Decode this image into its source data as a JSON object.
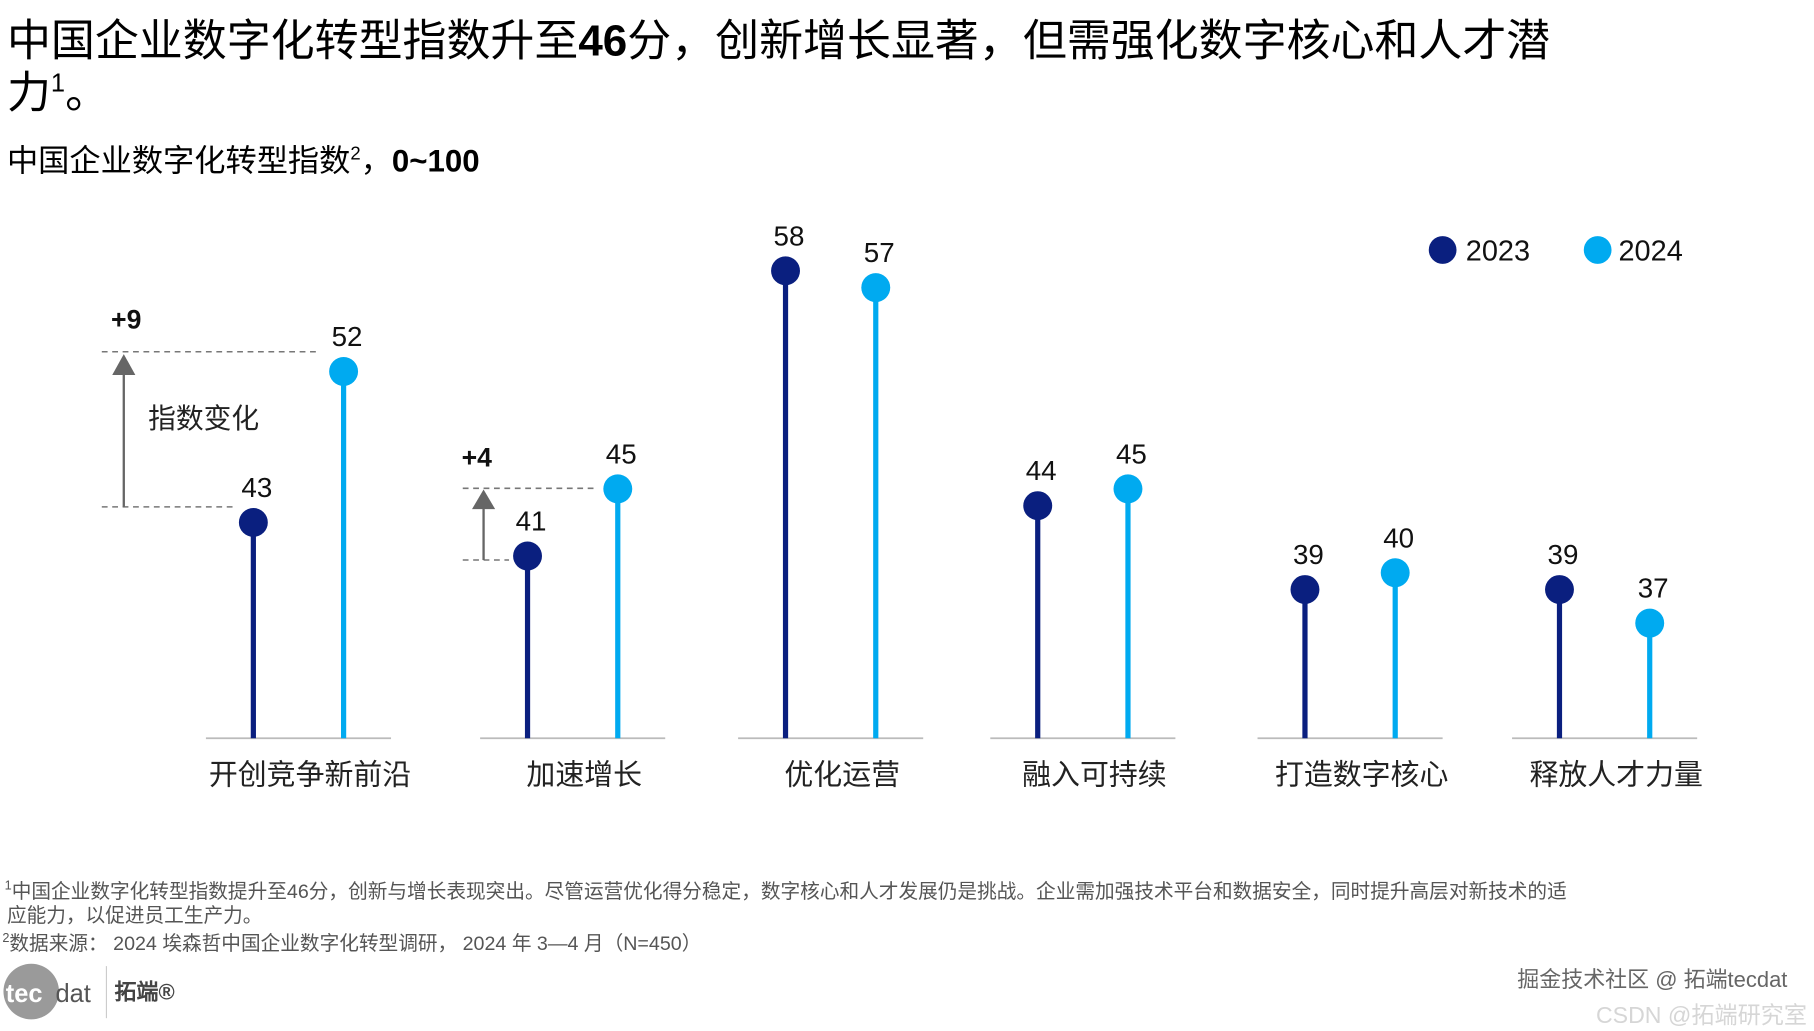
{
  "title": {
    "line1_a": "中国企业数字化转型指数升至",
    "line1_b": "46",
    "line1_c": "分，创新增长显著，但需强化数字核心和人才潜",
    "line2": "力",
    "line2_sup": "1",
    "line2_end": "。"
  },
  "subtitle": {
    "text": "中国企业数字化转型指数",
    "sup": "2",
    "sep": "，",
    "range": "0~100"
  },
  "chart_data": {
    "type": "lollipop",
    "categories": [
      "开创竞争新前沿",
      "加速增长",
      "优化运营",
      "融入可持续",
      "打造数字核心",
      "释放人才力量"
    ],
    "series": [
      {
        "name": "2023",
        "color": "#0a1f7f",
        "values": [
          43,
          41,
          58,
          44,
          39,
          39
        ]
      },
      {
        "name": "2024",
        "color": "#00aaf0",
        "values": [
          52,
          45,
          57,
          45,
          40,
          37
        ]
      }
    ],
    "legend_position": "top-right",
    "annotations": [
      {
        "category": "开创竞争新前沿",
        "delta": "+9",
        "label": "指数变化"
      },
      {
        "category": "加速增长",
        "delta": "+4"
      }
    ],
    "grid": false
  },
  "footnotes": {
    "f1_sup": "1",
    "f1_line1": "中国企业数字化转型指数提升至46分，创新与增长表现突出。尽管运营优化得分稳定，数字核心和人才发展仍是挑战。企业需加强技术平台和数据安全，同时提升高层对新技术的适",
    "f1_line2": "应能力，以促进员工生产力。",
    "f2_sup": "2",
    "f2": "数据来源： 2024 埃森哲中国企业数字化转型调研， 2024 年 3—4 月（N=450）"
  },
  "logo": {
    "text_a": "tec",
    "text_b": "dat",
    "brand": "拓端®"
  },
  "watermark": {
    "line1": "掘金技术社区 @ 拓端tecdat",
    "line2": "CSDN @拓端研究室"
  }
}
